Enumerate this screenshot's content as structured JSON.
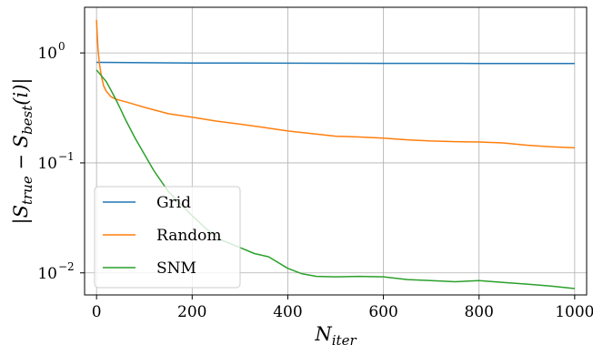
{
  "chart_data": {
    "type": "line",
    "title": "",
    "xlabel": "N_iter",
    "ylabel": "|S_true − S_best(i)|",
    "x_scale": "linear",
    "y_scale": "log",
    "xlim": [
      -25,
      1025
    ],
    "ylim": [
      0.0063,
      2.6
    ],
    "x_ticks": [
      0,
      200,
      400,
      600,
      800,
      1000
    ],
    "x_tick_labels": [
      "0",
      "200",
      "400",
      "600",
      "800",
      "1000"
    ],
    "y_ticks": [
      0.01,
      0.1,
      1
    ],
    "y_tick_labels": [
      {
        "base": "10",
        "exp": "−2"
      },
      {
        "base": "10",
        "exp": "−1"
      },
      {
        "base": "10",
        "exp": "0"
      }
    ],
    "grid": true,
    "legend_position": "lower-left",
    "series": [
      {
        "name": "Grid",
        "color": "#1f77b4",
        "x": [
          0,
          100,
          200,
          300,
          400,
          500,
          600,
          700,
          800,
          900,
          1000
        ],
        "y": [
          0.82,
          0.815,
          0.81,
          0.808,
          0.806,
          0.805,
          0.804,
          0.803,
          0.802,
          0.801,
          0.8
        ]
      },
      {
        "name": "Random",
        "color": "#ff7f0e",
        "x": [
          0,
          3,
          6,
          10,
          15,
          20,
          30,
          40,
          50,
          70,
          100,
          150,
          200,
          250,
          300,
          350,
          400,
          450,
          500,
          550,
          600,
          650,
          700,
          750,
          800,
          850,
          900,
          950,
          1000
        ],
        "y": [
          2.0,
          1.1,
          0.8,
          0.62,
          0.5,
          0.45,
          0.4,
          0.38,
          0.37,
          0.35,
          0.32,
          0.28,
          0.26,
          0.24,
          0.225,
          0.21,
          0.195,
          0.185,
          0.175,
          0.172,
          0.168,
          0.162,
          0.158,
          0.156,
          0.155,
          0.152,
          0.145,
          0.14,
          0.137
        ]
      },
      {
        "name": "SNM",
        "color": "#2ca02c",
        "x": [
          0,
          10,
          20,
          30,
          40,
          50,
          60,
          80,
          100,
          120,
          150,
          170,
          200,
          230,
          260,
          300,
          330,
          360,
          400,
          430,
          460,
          500,
          550,
          600,
          650,
          700,
          750,
          800,
          850,
          900,
          950,
          1000
        ],
        "y": [
          0.7,
          0.62,
          0.55,
          0.46,
          0.38,
          0.31,
          0.25,
          0.17,
          0.12,
          0.085,
          0.055,
          0.045,
          0.033,
          0.025,
          0.02,
          0.017,
          0.015,
          0.014,
          0.011,
          0.0098,
          0.0093,
          0.0092,
          0.0093,
          0.0092,
          0.0087,
          0.0085,
          0.0083,
          0.0085,
          0.0082,
          0.0079,
          0.0076,
          0.0072
        ]
      }
    ]
  }
}
